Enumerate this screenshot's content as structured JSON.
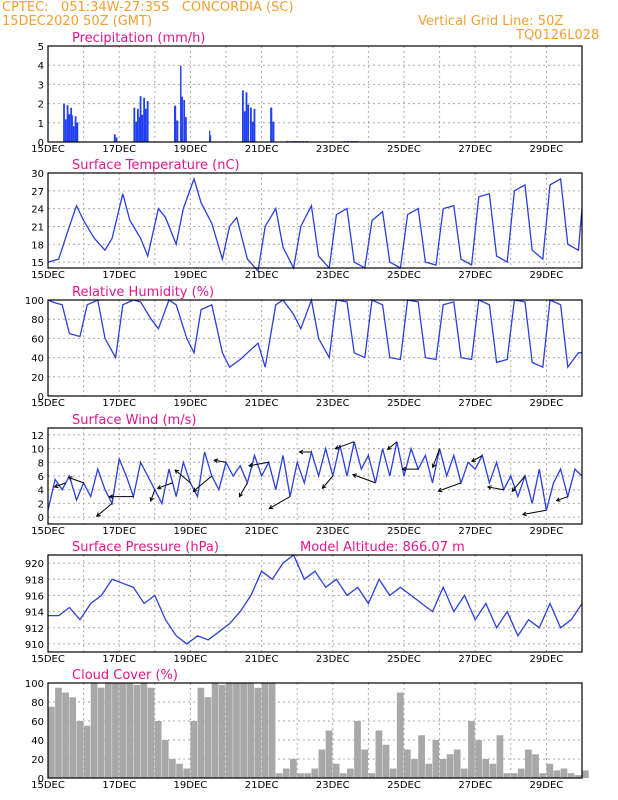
{
  "header": {
    "station": "CPTEC:   051:34W-27:35S   CONCORDIA (SC)",
    "datetime": "15DEC2020 50Z (GMT)",
    "grid_note": "Vertical Grid Line: 50Z",
    "model_code": "TQ0126L028"
  },
  "colors": {
    "header": "#f0a030",
    "title": "#e0188c",
    "line": "#2a3fdf",
    "bar": "#1f3ff0",
    "cloud": "#a8a8a8",
    "grid": "#aaaaaa"
  },
  "chart_data": [
    {
      "id": "precip",
      "type": "bar",
      "title": "Precipitation (mm/h)",
      "ylim": [
        0,
        5
      ],
      "yticks": [
        0,
        1,
        2,
        3,
        4,
        5
      ],
      "xticks": [
        "15DEC",
        "17DEC",
        "19DEC",
        "21DEC",
        "23DEC",
        "25DEC",
        "27DEC",
        "29DEC"
      ],
      "x_days": [
        0,
        15
      ],
      "events": [
        {
          "day": 0.55,
          "peak": 2.0,
          "width": 0.25
        },
        {
          "day": 0.75,
          "peak": 1.4,
          "width": 0.2
        },
        {
          "day": 1.9,
          "peak": 0.4,
          "width": 0.1
        },
        {
          "day": 2.5,
          "peak": 1.8,
          "width": 0.2
        },
        {
          "day": 2.7,
          "peak": 2.4,
          "width": 0.25
        },
        {
          "day": 3.6,
          "peak": 1.9,
          "width": 0.12
        },
        {
          "day": 3.75,
          "peak": 4.0,
          "width": 0.08
        },
        {
          "day": 3.85,
          "peak": 2.2,
          "width": 0.1
        },
        {
          "day": 4.55,
          "peak": 0.6,
          "width": 0.05
        },
        {
          "day": 5.55,
          "peak": 2.7,
          "width": 0.2
        },
        {
          "day": 5.75,
          "peak": 1.8,
          "width": 0.15
        },
        {
          "day": 6.3,
          "peak": 1.8,
          "width": 0.12
        },
        {
          "day": 7.0,
          "peak": 0.05,
          "width": 0.6
        },
        {
          "day": 8.5,
          "peak": 0.05,
          "width": 0.4
        }
      ]
    },
    {
      "id": "temp",
      "type": "line",
      "title": "Surface Temperature (nC)",
      "ylim": [
        14,
        30
      ],
      "yticks": [
        15,
        18,
        21,
        24,
        27,
        30
      ],
      "xticks": [
        "15DEC",
        "17DEC",
        "19DEC",
        "21DEC",
        "23DEC",
        "25DEC",
        "27DEC",
        "29DEC"
      ],
      "x_days": [
        0,
        15
      ],
      "x": [
        0,
        0.3,
        0.6,
        0.8,
        1.0,
        1.3,
        1.6,
        1.8,
        2.1,
        2.3,
        2.6,
        2.8,
        3.1,
        3.3,
        3.6,
        3.8,
        4.1,
        4.3,
        4.6,
        4.9,
        5.1,
        5.3,
        5.6,
        5.9,
        6.1,
        6.4,
        6.6,
        6.9,
        7.1,
        7.4,
        7.6,
        7.9,
        8.1,
        8.4,
        8.6,
        8.9,
        9.1,
        9.4,
        9.6,
        9.9,
        10.1,
        10.4,
        10.6,
        10.9,
        11.1,
        11.4,
        11.6,
        11.9,
        12.1,
        12.4,
        12.6,
        12.9,
        13.1,
        13.4,
        13.6,
        13.9,
        14.1,
        14.4,
        14.6,
        14.9,
        15.0
      ],
      "y": [
        15,
        15.5,
        21,
        24.5,
        22,
        19,
        17,
        19,
        26.5,
        22,
        19,
        16,
        24,
        22.5,
        18,
        24,
        29,
        25,
        21.5,
        15.5,
        21,
        22.5,
        15.5,
        13.5,
        21,
        24,
        17.5,
        14,
        21,
        24.5,
        16,
        14,
        23,
        24,
        15,
        14,
        22,
        23.5,
        15,
        14,
        23,
        24,
        15,
        14.5,
        24,
        24.5,
        15.5,
        14.5,
        26,
        26.5,
        16,
        15,
        27,
        28,
        17,
        15.5,
        28,
        29,
        18,
        17,
        24
      ]
    },
    {
      "id": "rh",
      "type": "line",
      "title": "Relative Humidity (%)",
      "ylim": [
        0,
        100
      ],
      "yticks": [
        0,
        20,
        40,
        60,
        80,
        100
      ],
      "xticks": [
        "15DEC",
        "17DEC",
        "19DEC",
        "21DEC",
        "23DEC",
        "25DEC",
        "27DEC",
        "29DEC"
      ],
      "x_days": [
        0,
        15
      ],
      "x": [
        0,
        0.2,
        0.4,
        0.6,
        0.9,
        1.1,
        1.4,
        1.6,
        1.9,
        2.1,
        2.4,
        2.6,
        2.9,
        3.1,
        3.4,
        3.6,
        3.9,
        4.1,
        4.3,
        4.6,
        4.9,
        5.1,
        5.4,
        5.6,
        5.9,
        6.1,
        6.4,
        6.6,
        6.9,
        7.1,
        7.4,
        7.6,
        7.9,
        8.1,
        8.4,
        8.6,
        8.9,
        9.1,
        9.4,
        9.6,
        9.9,
        10.1,
        10.4,
        10.6,
        10.9,
        11.1,
        11.4,
        11.6,
        11.9,
        12.1,
        12.4,
        12.6,
        12.9,
        13.1,
        13.4,
        13.6,
        13.9,
        14.1,
        14.4,
        14.6,
        14.9,
        15.0
      ],
      "y": [
        100,
        97,
        95,
        65,
        62,
        95,
        100,
        60,
        40,
        95,
        100,
        98,
        80,
        70,
        100,
        95,
        60,
        45,
        90,
        95,
        45,
        30,
        38,
        45,
        55,
        30,
        95,
        100,
        85,
        70,
        100,
        60,
        40,
        100,
        98,
        45,
        40,
        100,
        95,
        40,
        38,
        100,
        98,
        40,
        38,
        95,
        98,
        40,
        38,
        100,
        95,
        35,
        38,
        100,
        98,
        35,
        30,
        100,
        95,
        30,
        45,
        45
      ]
    },
    {
      "id": "wind",
      "type": "line",
      "title": "Surface Wind (m/s)",
      "ylim": [
        -1,
        13
      ],
      "yticks": [
        0,
        2,
        4,
        6,
        8,
        10,
        12
      ],
      "xticks": [
        "15DEC",
        "17DEC",
        "19DEC",
        "21DEC",
        "23DEC",
        "25DEC",
        "27DEC",
        "29DEC"
      ],
      "x_days": [
        0,
        15
      ],
      "x": [
        0,
        0.2,
        0.4,
        0.6,
        0.8,
        1.0,
        1.2,
        1.4,
        1.6,
        1.8,
        2.0,
        2.2,
        2.4,
        2.6,
        2.8,
        3.0,
        3.2,
        3.4,
        3.6,
        3.8,
        4.0,
        4.2,
        4.4,
        4.6,
        4.8,
        5.0,
        5.2,
        5.4,
        5.6,
        5.8,
        6.0,
        6.2,
        6.4,
        6.6,
        6.8,
        7.0,
        7.2,
        7.4,
        7.6,
        7.8,
        8.0,
        8.2,
        8.4,
        8.6,
        8.8,
        9.0,
        9.2,
        9.4,
        9.6,
        9.8,
        10.0,
        10.2,
        10.4,
        10.6,
        10.8,
        11.0,
        11.2,
        11.4,
        11.6,
        11.8,
        12.0,
        12.2,
        12.4,
        12.6,
        12.8,
        13.0,
        13.2,
        13.4,
        13.6,
        13.8,
        14.0,
        14.2,
        14.4,
        14.6,
        14.8,
        15.0
      ],
      "y": [
        1,
        5.5,
        4,
        6,
        2.5,
        5,
        3,
        7,
        4,
        2,
        8.5,
        6,
        3,
        8,
        6,
        4,
        2,
        7,
        3,
        8,
        5,
        3,
        9.5,
        6,
        4,
        8,
        6,
        7.5,
        5,
        9,
        6,
        8,
        4,
        9,
        3,
        8,
        5,
        9.5,
        6,
        10,
        6,
        10.5,
        6,
        11,
        7,
        9,
        5,
        10,
        6,
        11,
        6,
        10,
        7,
        9,
        5,
        10,
        6,
        9,
        5,
        8,
        7,
        9,
        5,
        8,
        4,
        6,
        3,
        6,
        2,
        7,
        1,
        5,
        7,
        3,
        7,
        6
      ],
      "arrows_at_days": [
        0.5,
        1.0,
        1.8,
        2.4,
        3.0,
        3.5,
        4.0,
        4.6,
        5.0,
        5.6,
        6.2,
        6.8,
        7.4,
        8.0,
        8.6,
        9.2,
        9.8,
        10.4,
        11.0,
        11.6,
        12.2,
        12.8,
        13.4,
        14.0,
        14.6
      ],
      "arrow_dirs": [
        200,
        160,
        220,
        180,
        250,
        200,
        140,
        220,
        170,
        240,
        190,
        210,
        180,
        230,
        200,
        160,
        220,
        180,
        250,
        200,
        210,
        170,
        230,
        190,
        200
      ]
    },
    {
      "id": "pressure",
      "type": "line",
      "title": "Surface Pressure (hPa)",
      "annotation": "Model Altitude: 866.07  m",
      "ylim": [
        909,
        921
      ],
      "yticks": [
        910,
        912,
        914,
        916,
        918,
        920
      ],
      "xticks": [
        "15DEC",
        "17DEC",
        "19DEC",
        "21DEC",
        "23DEC",
        "25DEC",
        "27DEC",
        "29DEC"
      ],
      "x_days": [
        0,
        15
      ],
      "x": [
        0,
        0.3,
        0.6,
        0.9,
        1.2,
        1.5,
        1.8,
        2.1,
        2.4,
        2.7,
        3.0,
        3.3,
        3.6,
        3.9,
        4.2,
        4.5,
        4.8,
        5.1,
        5.4,
        5.7,
        6.0,
        6.3,
        6.6,
        6.9,
        7.2,
        7.5,
        7.8,
        8.1,
        8.4,
        8.7,
        9.0,
        9.3,
        9.6,
        9.9,
        10.2,
        10.5,
        10.8,
        11.1,
        11.4,
        11.7,
        12.0,
        12.3,
        12.6,
        12.9,
        13.2,
        13.5,
        13.8,
        14.1,
        14.4,
        14.7,
        15.0
      ],
      "y": [
        913.5,
        913.5,
        914.5,
        913,
        915,
        916,
        918,
        917.5,
        917,
        915,
        916,
        913,
        911,
        910,
        911,
        910.5,
        911.5,
        912.5,
        914,
        916,
        919,
        918,
        920,
        921,
        918,
        919,
        917,
        918,
        916,
        917,
        915,
        918,
        916,
        917,
        916,
        915,
        914,
        917,
        914,
        916,
        913,
        915,
        912,
        914,
        911,
        913,
        912,
        915,
        912,
        913,
        915
      ]
    },
    {
      "id": "cloud",
      "type": "area",
      "title": "Cloud Cover (%)",
      "ylim": [
        0,
        100
      ],
      "yticks": [
        0,
        20,
        40,
        60,
        80,
        100
      ],
      "xticks": [
        "15DEC",
        "17DEC",
        "19DEC",
        "21DEC",
        "23DEC",
        "25DEC",
        "27DEC",
        "29DEC"
      ],
      "x_days": [
        0,
        15
      ],
      "x": [
        0,
        0.2,
        0.4,
        0.6,
        0.8,
        1.0,
        1.2,
        1.4,
        1.6,
        1.8,
        2.0,
        2.2,
        2.4,
        2.6,
        2.8,
        3.0,
        3.2,
        3.4,
        3.6,
        3.8,
        4.0,
        4.2,
        4.4,
        4.6,
        4.8,
        5.0,
        5.2,
        5.4,
        5.6,
        5.8,
        6.0,
        6.2,
        6.4,
        6.6,
        6.8,
        7.0,
        7.2,
        7.4,
        7.6,
        7.8,
        8.0,
        8.2,
        8.4,
        8.6,
        8.8,
        9.0,
        9.2,
        9.4,
        9.6,
        9.8,
        10.0,
        10.2,
        10.4,
        10.6,
        10.8,
        11.0,
        11.2,
        11.4,
        11.6,
        11.8,
        12.0,
        12.2,
        12.4,
        12.6,
        12.8,
        13.0,
        13.2,
        13.4,
        13.6,
        13.8,
        14.0,
        14.2,
        14.4,
        14.6,
        14.8,
        15.0
      ],
      "y": [
        75,
        95,
        90,
        85,
        60,
        55,
        100,
        95,
        100,
        100,
        100,
        100,
        98,
        100,
        95,
        60,
        40,
        20,
        15,
        10,
        60,
        95,
        85,
        100,
        98,
        100,
        100,
        100,
        100,
        95,
        100,
        100,
        5,
        10,
        20,
        5,
        5,
        10,
        30,
        50,
        15,
        5,
        10,
        60,
        30,
        5,
        50,
        35,
        10,
        90,
        30,
        20,
        45,
        15,
        40,
        20,
        25,
        30,
        10,
        60,
        40,
        20,
        15,
        45,
        5,
        5,
        10,
        30,
        25,
        5,
        15,
        8,
        10,
        5,
        3,
        8
      ]
    }
  ]
}
